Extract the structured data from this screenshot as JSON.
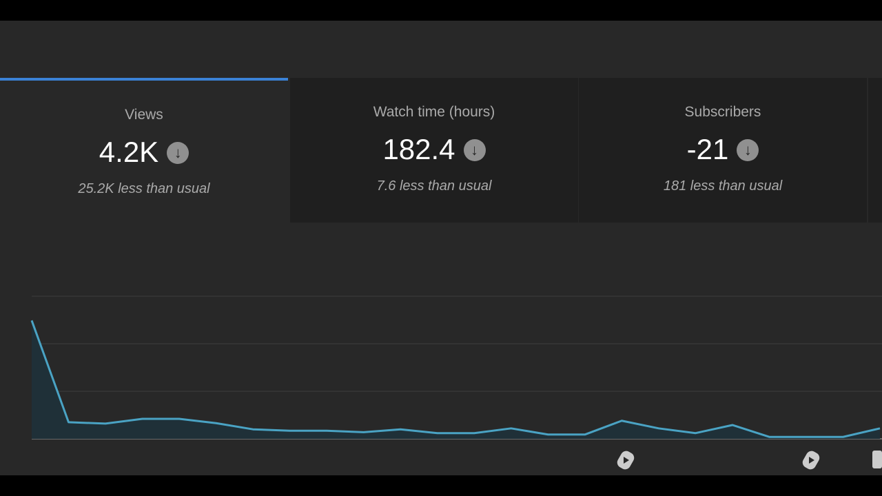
{
  "cards": [
    {
      "label": "Views",
      "value": "4.2K",
      "comparison": "25.2K less than usual"
    },
    {
      "label": "Watch time (hours)",
      "value": "182.4",
      "comparison": "7.6 less than usual"
    },
    {
      "label": "Subscribers",
      "value": "-21",
      "comparison": "181 less than usual"
    }
  ],
  "chart_data": {
    "type": "line",
    "color": "#4aa3c4",
    "area_color": "#1f3038",
    "values": [
      2.49,
      0.35,
      0.32,
      0.42,
      0.42,
      0.33,
      0.2,
      0.17,
      0.17,
      0.14,
      0.2,
      0.12,
      0.12,
      0.22,
      0.09,
      0.09,
      0.38,
      0.22,
      0.12,
      0.29,
      0.04,
      0.04,
      0.04,
      0.22
    ],
    "ylim": [
      0,
      3
    ],
    "yticks": [
      0,
      1,
      2,
      3
    ],
    "grid": true
  }
}
